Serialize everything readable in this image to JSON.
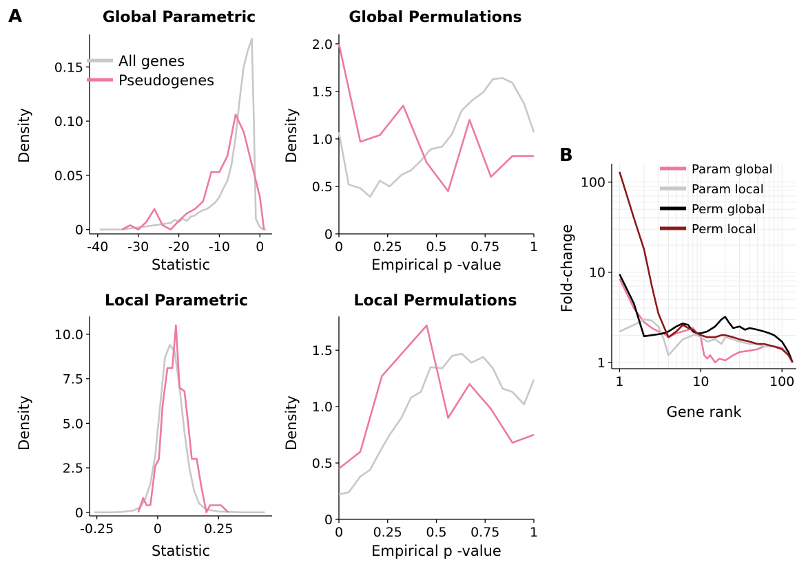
{
  "panel_labels": {
    "a": "A",
    "b": "B"
  },
  "colors": {
    "all_genes": "#c9c7c7",
    "pseudogenes": "#ed7a9e",
    "param_global": "#ed7a9e",
    "param_local": "#c9c7c7",
    "perm_global": "#000000",
    "perm_local": "#8b1a1a",
    "grid": "#ebebeb"
  },
  "chart_data": [
    {
      "id": "gp",
      "type": "line",
      "title": "Global Parametric",
      "xlabel": "Statistic",
      "ylabel": "Density",
      "xlim": [
        -42,
        3
      ],
      "ylim": [
        -0.004,
        0.18
      ],
      "xticks": [
        -40,
        -30,
        -20,
        -10,
        0
      ],
      "xtick_labels": [
        "-40",
        "-30",
        "-20",
        "-10",
        "0"
      ],
      "yticks": [
        0,
        0.05,
        0.1,
        0.15
      ],
      "ytick_labels": [
        "0",
        "0.05",
        "0.10",
        "0.15"
      ],
      "legend": [
        "All genes",
        "Pseudogenes"
      ],
      "series": [
        {
          "name": "All genes",
          "color": "#c9c7c7",
          "x": [
            -39.5,
            -38,
            -36,
            -34,
            -32,
            -30,
            -28,
            -26,
            -24,
            -22,
            -21,
            -20,
            -19,
            -18,
            -17,
            -16,
            -15,
            -14,
            -13,
            -12,
            -11,
            -10,
            -9,
            -8,
            -7,
            -6,
            -5,
            -4,
            -3,
            -2,
            -1.5,
            -1,
            0,
            1,
            1.5
          ],
          "y": [
            0,
            0,
            0,
            0,
            0.001,
            0.002,
            0.003,
            0.004,
            0.005,
            0.006,
            0.009,
            0.007,
            0.01,
            0.008,
            0.012,
            0.013,
            0.016,
            0.018,
            0.019,
            0.022,
            0.025,
            0.03,
            0.038,
            0.045,
            0.06,
            0.085,
            0.12,
            0.15,
            0.165,
            0.176,
            0.1,
            0.01,
            0.002,
            0,
            0
          ]
        },
        {
          "name": "Pseudogenes",
          "color": "#ed7a9e",
          "x": [
            -34,
            -32,
            -30,
            -28,
            -26,
            -24,
            -22,
            -20,
            -18,
            -16,
            -14,
            -12,
            -10,
            -8,
            -6,
            -4,
            -2,
            0,
            1
          ],
          "y": [
            0,
            0.004,
            0,
            0.007,
            0.019,
            0.004,
            0,
            0.008,
            0.015,
            0.019,
            0.026,
            0.053,
            0.053,
            0.068,
            0.106,
            0.09,
            0.06,
            0.03,
            0
          ]
        }
      ]
    },
    {
      "id": "gperm",
      "type": "line",
      "title": "Global Permulations",
      "xlabel": "Empirical p -value",
      "ylabel": "Density",
      "xlim": [
        0,
        1
      ],
      "ylim": [
        0,
        2.1
      ],
      "xticks": [
        0,
        0.25,
        0.5,
        0.75,
        1
      ],
      "xtick_labels": [
        "0",
        "0.25",
        "0.5",
        "0.75",
        "1"
      ],
      "yticks": [
        0,
        0.5,
        1.0,
        1.5,
        2.0
      ],
      "ytick_labels": [
        "0",
        "0.5",
        "1.0",
        "1.5",
        "2.0"
      ],
      "series": [
        {
          "name": "All genes",
          "color": "#c9c7c7",
          "x": [
            0,
            0.05,
            0.11,
            0.16,
            0.21,
            0.26,
            0.32,
            0.37,
            0.42,
            0.47,
            0.53,
            0.58,
            0.63,
            0.68,
            0.74,
            0.79,
            0.84,
            0.89,
            0.95,
            1.0
          ],
          "y": [
            1.07,
            0.52,
            0.48,
            0.39,
            0.56,
            0.5,
            0.62,
            0.67,
            0.77,
            0.89,
            0.92,
            1.05,
            1.3,
            1.4,
            1.49,
            1.63,
            1.64,
            1.59,
            1.37,
            1.07
          ]
        },
        {
          "name": "Pseudogenes",
          "color": "#ed7a9e",
          "x": [
            0,
            0.11,
            0.21,
            0.33,
            0.45,
            0.56,
            0.67,
            0.78,
            0.89,
            1.0
          ],
          "y": [
            2.0,
            0.97,
            1.04,
            1.35,
            0.75,
            0.45,
            1.2,
            0.6,
            0.82,
            0.82
          ]
        }
      ]
    },
    {
      "id": "lp",
      "type": "line",
      "title": "Local Parametric",
      "xlabel": "Statistic",
      "ylabel": "Density",
      "xlim": [
        -0.28,
        0.47
      ],
      "ylim": [
        -0.2,
        11
      ],
      "xticks": [
        -0.25,
        0,
        0.25
      ],
      "xtick_labels": [
        "-0.25",
        "0",
        "0.25"
      ],
      "yticks": [
        0,
        2.5,
        5.0,
        7.5,
        10.0
      ],
      "ytick_labels": [
        "0",
        "2.5",
        "5.0",
        "7.5",
        "10.0"
      ],
      "series": [
        {
          "name": "All genes",
          "color": "#c9c7c7",
          "x": [
            -0.26,
            -0.2,
            -0.15,
            -0.1,
            -0.07,
            -0.05,
            -0.03,
            -0.01,
            0.01,
            0.03,
            0.05,
            0.07,
            0.09,
            0.11,
            0.13,
            0.15,
            0.17,
            0.2,
            0.25,
            0.3,
            0.35,
            0.44
          ],
          "y": [
            0,
            0,
            0.02,
            0.1,
            0.3,
            0.8,
            1.6,
            3.2,
            6.0,
            8.7,
            9.4,
            9.0,
            7.0,
            4.5,
            2.5,
            1.2,
            0.5,
            0.15,
            0.05,
            0.02,
            0,
            0
          ]
        },
        {
          "name": "Pseudogenes",
          "color": "#ed7a9e",
          "x": [
            -0.08,
            -0.06,
            -0.045,
            -0.03,
            -0.01,
            0.005,
            0.02,
            0.04,
            0.06,
            0.075,
            0.09,
            0.11,
            0.125,
            0.14,
            0.16,
            0.18,
            0.2,
            0.215,
            0.23,
            0.26,
            0.29
          ],
          "y": [
            0,
            0.8,
            0.4,
            0.4,
            2.6,
            3.0,
            6.0,
            8.1,
            8.1,
            10.5,
            7.0,
            6.8,
            5.0,
            3.0,
            3.0,
            1.4,
            0,
            0.4,
            0.4,
            0.4,
            0
          ]
        }
      ]
    },
    {
      "id": "lperm",
      "type": "line",
      "title": "Local Permulations",
      "xlabel": "Empirical p -value",
      "ylabel": "Density",
      "xlim": [
        0,
        1
      ],
      "ylim": [
        0,
        1.8
      ],
      "xticks": [
        0,
        0.25,
        0.5,
        0.75,
        1
      ],
      "xtick_labels": [
        "0",
        "0.25",
        "0.5",
        "0.75",
        "1"
      ],
      "yticks": [
        0,
        0.5,
        1.0,
        1.5
      ],
      "ytick_labels": [
        "0",
        "0.5",
        "1.0",
        "1.5"
      ],
      "series": [
        {
          "name": "All genes",
          "color": "#c9c7c7",
          "x": [
            0,
            0.05,
            0.11,
            0.16,
            0.21,
            0.26,
            0.32,
            0.37,
            0.42,
            0.47,
            0.53,
            0.58,
            0.63,
            0.68,
            0.74,
            0.79,
            0.84,
            0.89,
            0.95,
            1.0
          ],
          "y": [
            0.22,
            0.24,
            0.38,
            0.44,
            0.6,
            0.75,
            0.9,
            1.08,
            1.13,
            1.35,
            1.34,
            1.45,
            1.47,
            1.39,
            1.44,
            1.34,
            1.16,
            1.13,
            1.02,
            1.24
          ]
        },
        {
          "name": "Pseudogenes",
          "color": "#ed7a9e",
          "x": [
            0,
            0.11,
            0.22,
            0.45,
            0.56,
            0.67,
            0.78,
            0.89,
            1.0
          ],
          "y": [
            0.45,
            0.6,
            1.27,
            1.72,
            0.9,
            1.2,
            0.98,
            0.68,
            0.75
          ]
        }
      ]
    },
    {
      "id": "b",
      "type": "line",
      "title": "",
      "xlabel": "Gene rank",
      "ylabel": "Fold-change",
      "xscale": "log",
      "yscale": "log",
      "xlim": [
        0.8,
        150
      ],
      "ylim": [
        0.85,
        160
      ],
      "xticks": [
        1,
        10,
        100
      ],
      "xtick_labels": [
        "1",
        "10",
        "100"
      ],
      "yticks": [
        1,
        10,
        100
      ],
      "ytick_labels": [
        "1",
        "10",
        "100"
      ],
      "grid": true,
      "legend_position": "top-right",
      "legend": [
        "Param global",
        "Param local",
        "Perm global",
        "Perm local"
      ],
      "series": [
        {
          "name": "Param global",
          "color": "#ed7a9e",
          "x": [
            1,
            1.5,
            2,
            2.5,
            3,
            3.5,
            4,
            5,
            6,
            7,
            8,
            9,
            10,
            11,
            12,
            13,
            15,
            17,
            20,
            25,
            30,
            40,
            50,
            60,
            80,
            100,
            120,
            135
          ],
          "y": [
            8.5,
            4.0,
            2.8,
            2.4,
            2.2,
            2.1,
            1.9,
            2.1,
            2.2,
            2.3,
            2.4,
            2.1,
            1.9,
            1.2,
            1.1,
            1.2,
            1.0,
            1.1,
            1.05,
            1.2,
            1.3,
            1.35,
            1.4,
            1.5,
            1.5,
            1.45,
            1.2,
            1.0
          ]
        },
        {
          "name": "Param local",
          "color": "#c9c7c7",
          "x": [
            1,
            1.5,
            2,
            2.5,
            3,
            3.5,
            4,
            5,
            6,
            7,
            8,
            9,
            10,
            12,
            15,
            18,
            20,
            25,
            30,
            40,
            50,
            60,
            80,
            100,
            120,
            135
          ],
          "y": [
            2.2,
            2.6,
            3.0,
            2.9,
            2.5,
            1.8,
            1.2,
            1.5,
            1.8,
            1.9,
            2.0,
            2.0,
            1.9,
            1.7,
            1.8,
            1.6,
            1.9,
            1.8,
            1.7,
            1.6,
            1.6,
            1.5,
            1.5,
            1.4,
            1.3,
            1.0
          ]
        },
        {
          "name": "Perm global",
          "color": "#000000",
          "x": [
            1,
            1.5,
            2,
            2.5,
            3,
            3.5,
            4,
            5,
            6,
            7,
            8,
            9,
            10,
            12,
            15,
            18,
            20,
            22,
            25,
            30,
            35,
            40,
            50,
            60,
            70,
            80,
            100,
            120,
            135
          ],
          "y": [
            9.5,
            4.5,
            1.95,
            2.0,
            2.05,
            2.1,
            2.2,
            2.5,
            2.7,
            2.6,
            2.2,
            2.1,
            2.1,
            2.2,
            2.5,
            3.0,
            3.2,
            2.8,
            2.4,
            2.5,
            2.3,
            2.4,
            2.3,
            2.2,
            2.1,
            2.0,
            1.7,
            1.3,
            1.0
          ]
        },
        {
          "name": "Perm local",
          "color": "#8b1a1a",
          "x": [
            1,
            1.5,
            2,
            2.5,
            3,
            3.5,
            4,
            5,
            6,
            7,
            8,
            9,
            10,
            12,
            15,
            18,
            20,
            25,
            30,
            40,
            50,
            60,
            80,
            100,
            120,
            135
          ],
          "y": [
            130,
            40,
            18,
            7,
            3.5,
            2.5,
            1.9,
            2.2,
            2.6,
            2.4,
            2.3,
            2.1,
            2.0,
            1.9,
            1.9,
            2.0,
            2.0,
            1.9,
            1.8,
            1.7,
            1.6,
            1.6,
            1.5,
            1.4,
            1.2,
            1.0
          ]
        }
      ]
    }
  ]
}
